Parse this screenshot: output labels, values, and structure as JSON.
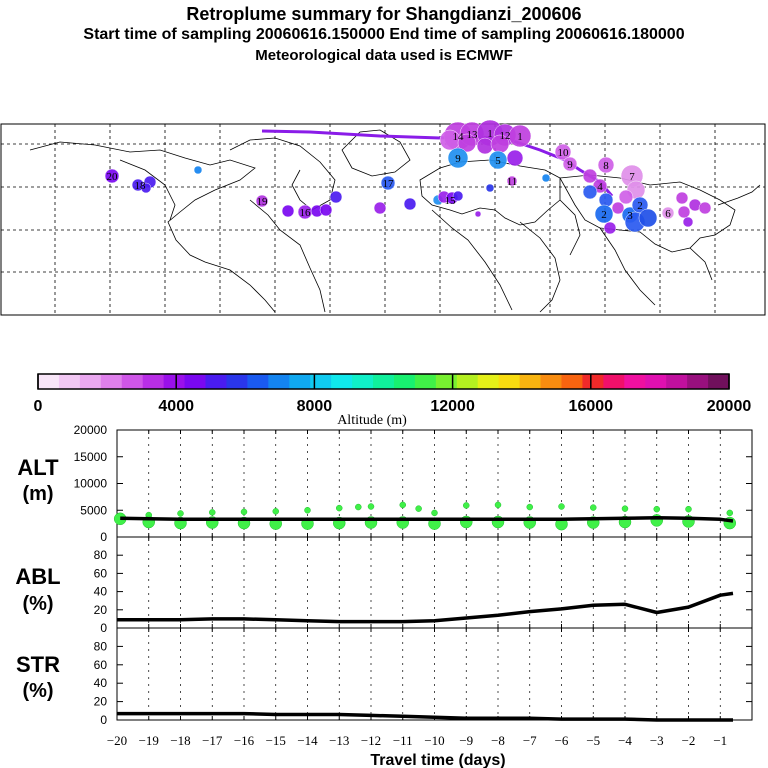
{
  "titles": {
    "line1": "Retroplume summary for Shangdianzi_200606",
    "line2": "Start time of sampling 20060616.150000     End time of sampling 20060616.180000",
    "line3": "Meteorological data used is ECMWF"
  },
  "colorbar": {
    "label": "Altitude (m)",
    "tick_labels": [
      "0",
      "4000",
      "8000",
      "12000",
      "16000",
      "20000"
    ],
    "colors": [
      "#f8e6f8",
      "#f2c8f4",
      "#eaa8f0",
      "#df80ec",
      "#cf56e8",
      "#b82ee6",
      "#9a10ea",
      "#7a08f0",
      "#4a1cf0",
      "#2a36ea",
      "#1a5af0",
      "#1484f0",
      "#10a8f0",
      "#10caf0",
      "#10e8ec",
      "#10f0c8",
      "#10f09c",
      "#18f070",
      "#40f048",
      "#78f030",
      "#b4f020",
      "#e4f018",
      "#f8dc10",
      "#f8b410",
      "#f88c10",
      "#f86410",
      "#f02a2a",
      "#f0106a",
      "#f010a0",
      "#e010b0",
      "#c0109e",
      "#98107e",
      "#70105c"
    ]
  },
  "map": {
    "point_labels": [
      "2",
      "1",
      "1",
      "14",
      "13",
      "12",
      "9",
      "10",
      "9",
      "8",
      "7",
      "5",
      "3",
      "6",
      "2",
      "4",
      "20",
      "16",
      "17",
      "19",
      "18",
      "15",
      "11"
    ]
  },
  "panels": {
    "alt": {
      "label_top": "ALT",
      "label_bottom": "(m)",
      "y_ticks": [
        "0",
        "5000",
        "10000",
        "15000",
        "20000"
      ]
    },
    "abl": {
      "label_top": "ABL",
      "label_bottom": "(%)",
      "y_ticks": [
        "0",
        "20",
        "40",
        "60",
        "80"
      ]
    },
    "str": {
      "label_top": "STR",
      "label_bottom": "(%)",
      "y_ticks": [
        "0",
        "20",
        "40",
        "60",
        "80"
      ]
    }
  },
  "x_axis": {
    "label": "Travel time (days)",
    "tick_labels": [
      "-20",
      "-19",
      "-18",
      "-17",
      "-16",
      "-15",
      "-14",
      "-13",
      "-12",
      "-11",
      "-10",
      "-9",
      "-8",
      "-7",
      "-6",
      "-5",
      "-4",
      "-3",
      "-2",
      "-1"
    ]
  },
  "chart_data": [
    {
      "type": "line",
      "title": "ALT",
      "xlabel": "Travel time (days)",
      "ylabel": "(m)",
      "xlim": [
        -20,
        0
      ],
      "ylim": [
        0,
        20000
      ],
      "series": [
        {
          "name": "mean altitude",
          "x": [
            -19.9,
            -19,
            -18,
            -17,
            -16,
            -15,
            -14,
            -13,
            -12,
            -11,
            -10,
            -9,
            -8,
            -7,
            -6,
            -5,
            -4,
            -3,
            -2,
            -1,
            -0.6
          ],
          "values": [
            3500,
            3400,
            3300,
            3300,
            3300,
            3300,
            3300,
            3300,
            3300,
            3300,
            3300,
            3300,
            3300,
            3300,
            3300,
            3400,
            3500,
            3600,
            3500,
            3300,
            3000
          ]
        },
        {
          "name": "cluster altitudes",
          "x": [
            -19.9,
            -19,
            -19,
            -18,
            -18,
            -17,
            -17,
            -16,
            -16,
            -15,
            -15,
            -14,
            -14,
            -13,
            -13,
            -12.4,
            -12,
            -12,
            -11,
            -11,
            -10.5,
            -10,
            -10,
            -9,
            -9,
            -8,
            -8,
            -7,
            -7,
            -6,
            -6,
            -5,
            -5,
            -4,
            -4,
            -3,
            -3,
            -2,
            -2,
            -0.7,
            -0.7
          ],
          "values": [
            3400,
            4100,
            2800,
            4400,
            2600,
            4600,
            2700,
            4700,
            2600,
            4800,
            2500,
            5000,
            2500,
            5400,
            2600,
            5600,
            5700,
            2700,
            6000,
            2700,
            5300,
            4500,
            2500,
            5900,
            2800,
            6000,
            2800,
            5600,
            2700,
            5700,
            2400,
            5500,
            2700,
            5300,
            2800,
            5200,
            3100,
            5200,
            2900,
            4500,
            2600
          ]
        }
      ]
    },
    {
      "type": "line",
      "title": "ABL",
      "xlabel": "Travel time (days)",
      "ylabel": "(%)",
      "xlim": [
        -20,
        0
      ],
      "ylim": [
        0,
        100
      ],
      "series": [
        {
          "name": "ABL fraction",
          "x": [
            -20,
            -19,
            -18,
            -17,
            -16,
            -15,
            -14,
            -13,
            -12,
            -11,
            -10,
            -9,
            -8,
            -7,
            -6,
            -5,
            -4,
            -3,
            -2,
            -1,
            -0.6
          ],
          "values": [
            9,
            9,
            9,
            10,
            10,
            9,
            8,
            7,
            7,
            7,
            8,
            11,
            14,
            18,
            21,
            25,
            26,
            17,
            23,
            36,
            38
          ]
        }
      ]
    },
    {
      "type": "line",
      "title": "STR",
      "xlabel": "Travel time (days)",
      "ylabel": "(%)",
      "xlim": [
        -20,
        0
      ],
      "ylim": [
        0,
        100
      ],
      "series": [
        {
          "name": "STR fraction",
          "x": [
            -20,
            -19,
            -18,
            -17,
            -16,
            -15,
            -14,
            -13,
            -12,
            -11,
            -10,
            -9,
            -8,
            -7,
            -6,
            -5,
            -4,
            -3,
            -2,
            -1,
            -0.6
          ],
          "values": [
            7,
            7,
            7,
            7,
            7,
            6,
            6,
            6,
            5,
            4,
            3,
            2,
            2,
            2,
            1,
            1,
            1,
            0,
            0,
            0,
            0
          ]
        }
      ]
    }
  ]
}
